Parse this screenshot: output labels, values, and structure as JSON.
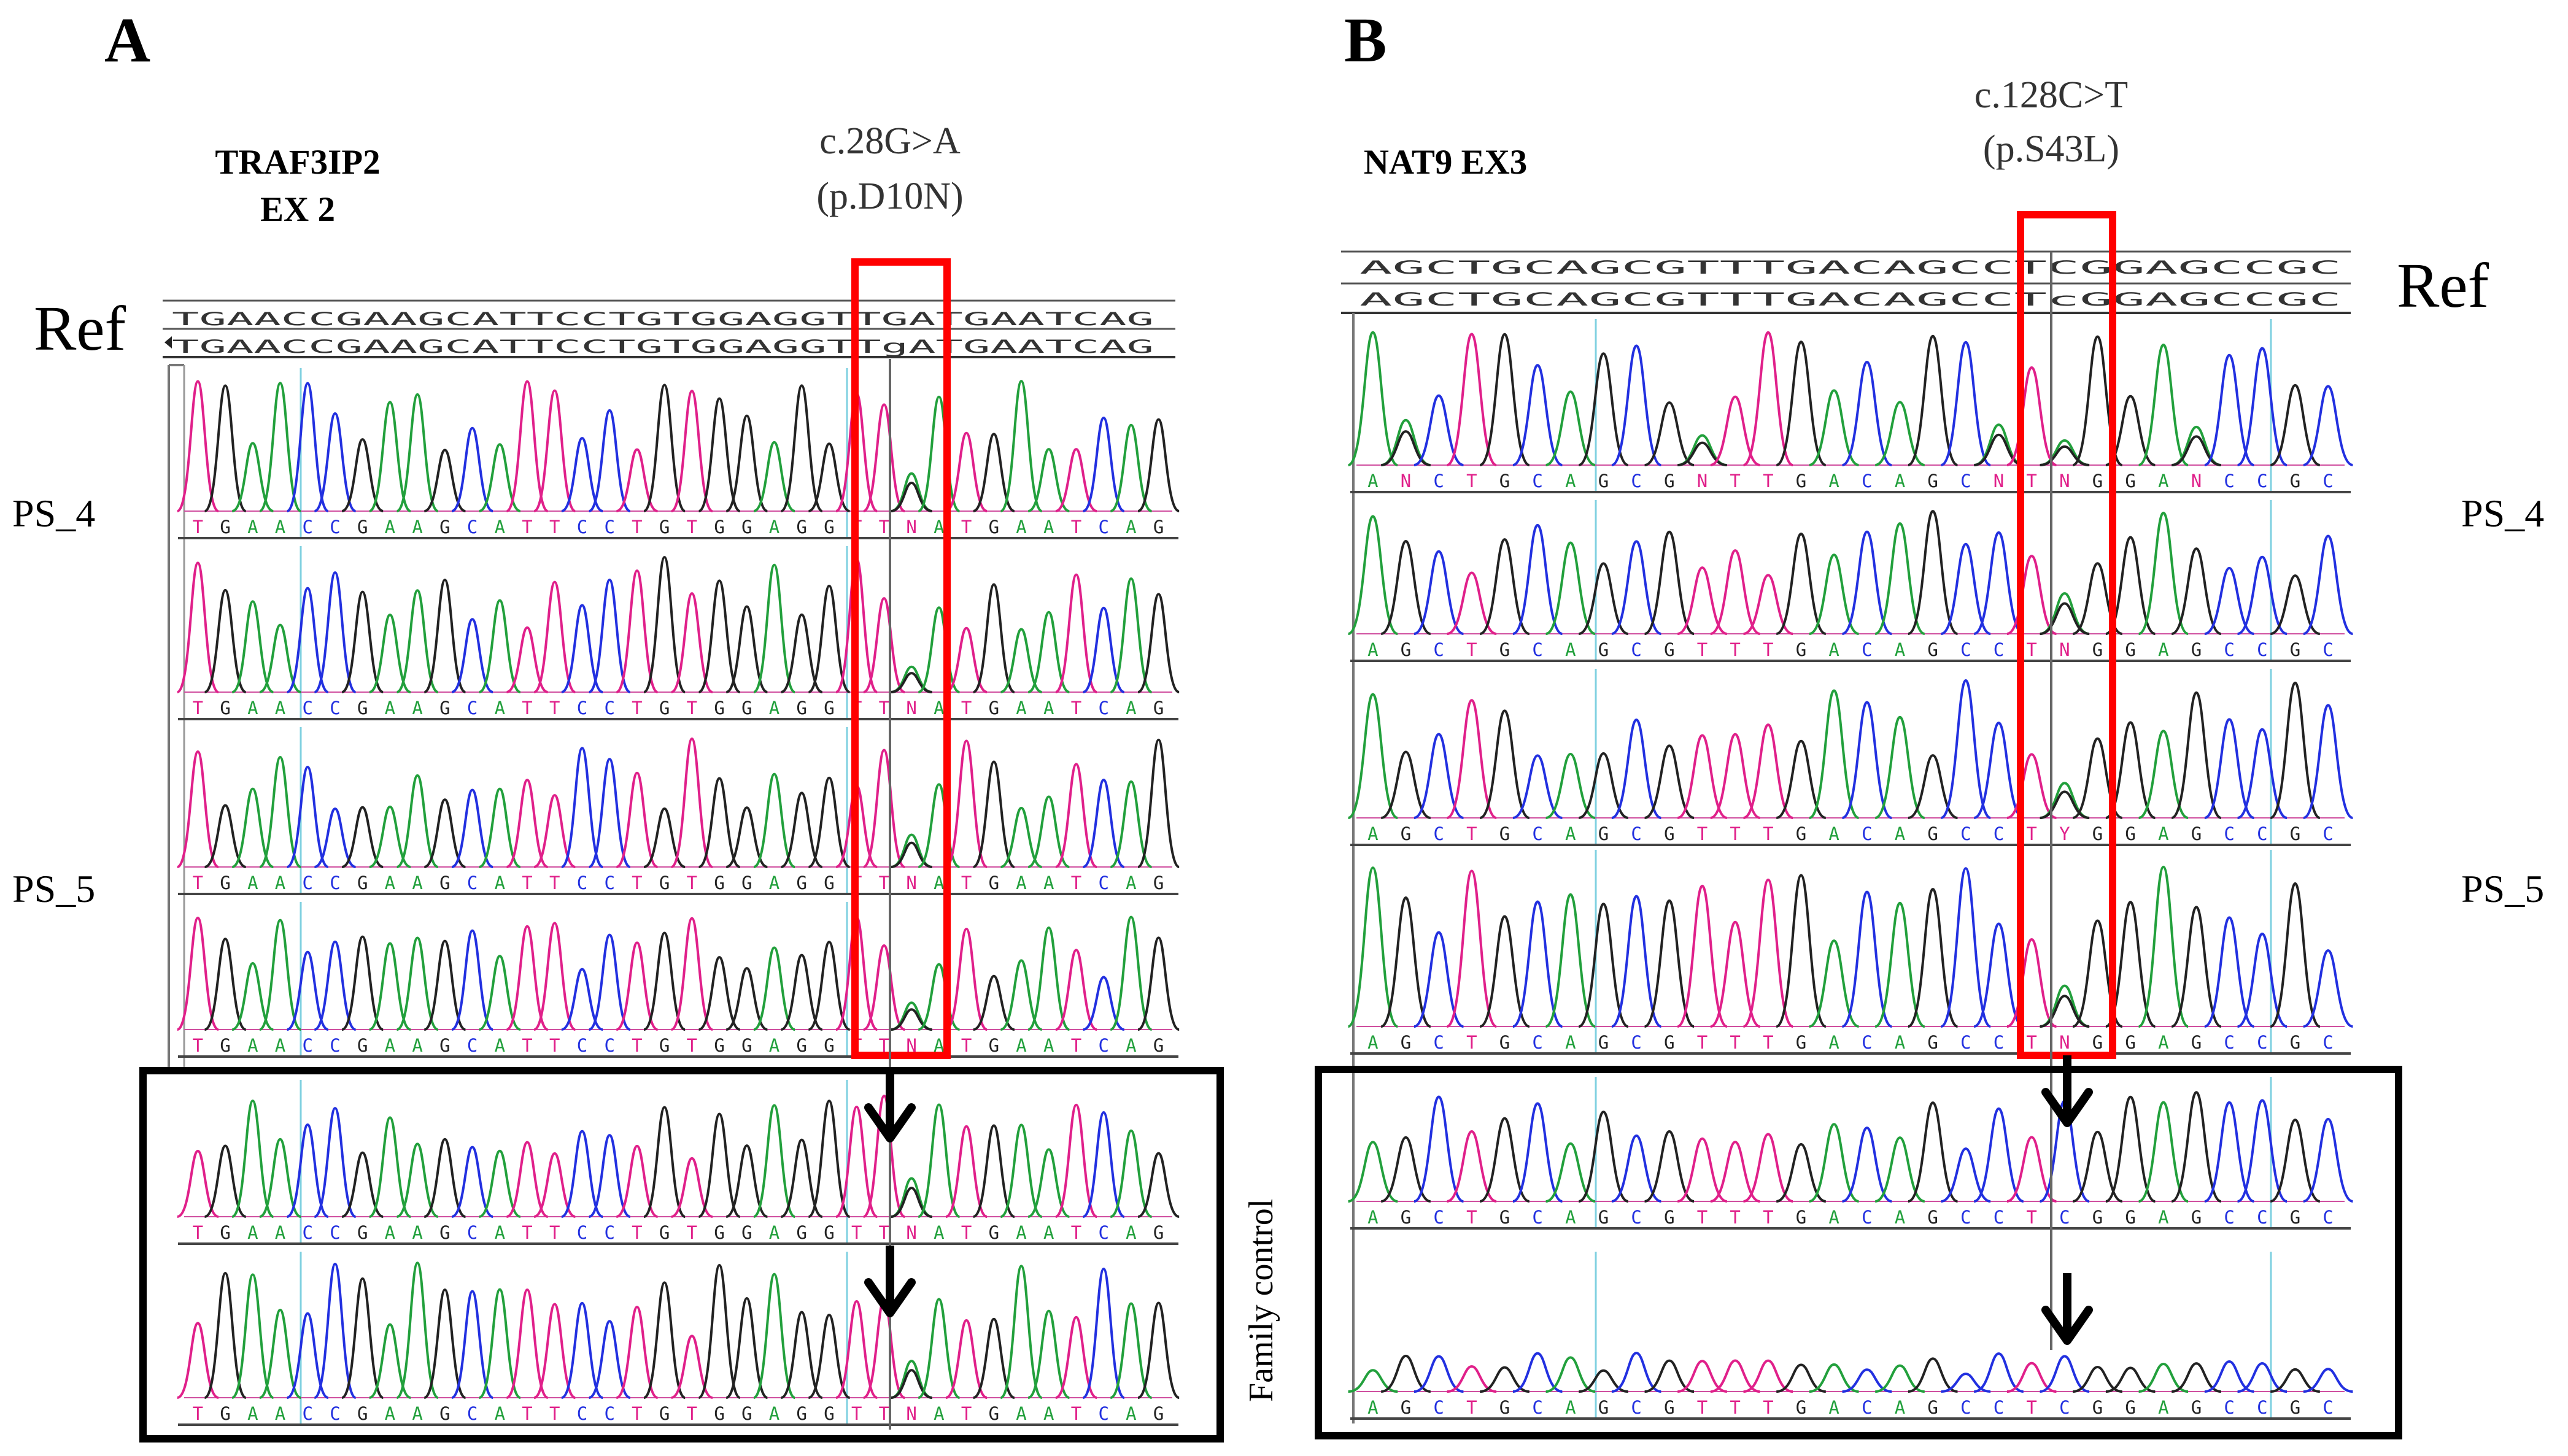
{
  "panel_a": {
    "letter": "A",
    "gene_line1": "TRAF3IP2",
    "gene_line2": "EX 2",
    "variant_line1": "c.28G>A",
    "variant_line2": "(p.D10N)",
    "ref_label": "Ref",
    "sample_labels": [
      "PS_4",
      "PS_5"
    ],
    "ref_seq_upper": "TGAACCGAAGCATTCCTGTGGAGGTTGATGAATCAG",
    "ref_seq_lower": "TGAACCGAAGCATTCCTGTGGAGGTTgATGAATCAG",
    "trace_seqs": [
      "TGAACCGAAGCATTCCTGTGGAGGTTNATGAATCAG",
      "TGAACCGAAGCATTCCTGTGGAGGTTNATGAATCAG",
      "TGAACCGAAGCATTCCTGTGGAGGTTNATGAATCAG",
      "TGAACCGAAGCATTCCTGTGGAGGTTNATGAATCAG",
      "TGAACCGAAGCATTCCTGTGGAGGTTNATGAATCAG",
      "TGAACCGAAGCATTCCTGTGGAGGTTNATGAATCAG"
    ]
  },
  "panel_b": {
    "letter": "B",
    "gene_line1": "NAT9 EX3",
    "variant_line1": "c.128C>T",
    "variant_line2": "(p.S43L)",
    "ref_label": "Ref",
    "sample_labels": [
      "PS_4",
      "PS_5"
    ],
    "family_label": "Family control",
    "ref_seq_upper": "AGCTGCAGCGTTTGACAGCCTCGGAGCCGC",
    "ref_seq_lower": "AGCTGCAGCGTTTGACAGCCTcGGAGCCGC",
    "trace_seqs": [
      "ANCTGCAGCGNTTGACAGCNTNGGANCCGC",
      "AGCTGCAGCGTTTGACAGCCTNGGAGCCGC",
      "AGCTGCAGCGTTTGACAGCCTYGGAGCCGC",
      "AGCTGCAGCGTTTGACAGCCTNGGAGCCGC",
      "AGCTGCAGCGTTTGACAGCCTCGGAGCCGC",
      "AGCTGCAGCGTTTGACAGCCTCGGAGCCGC"
    ]
  },
  "colors": {
    "A": "#22a03c",
    "C": "#2230e0",
    "G": "#222222",
    "T": "#e0208a",
    "N": "#e0208a",
    "highlight": "#ff0000",
    "guide": "#7fd0e0"
  }
}
